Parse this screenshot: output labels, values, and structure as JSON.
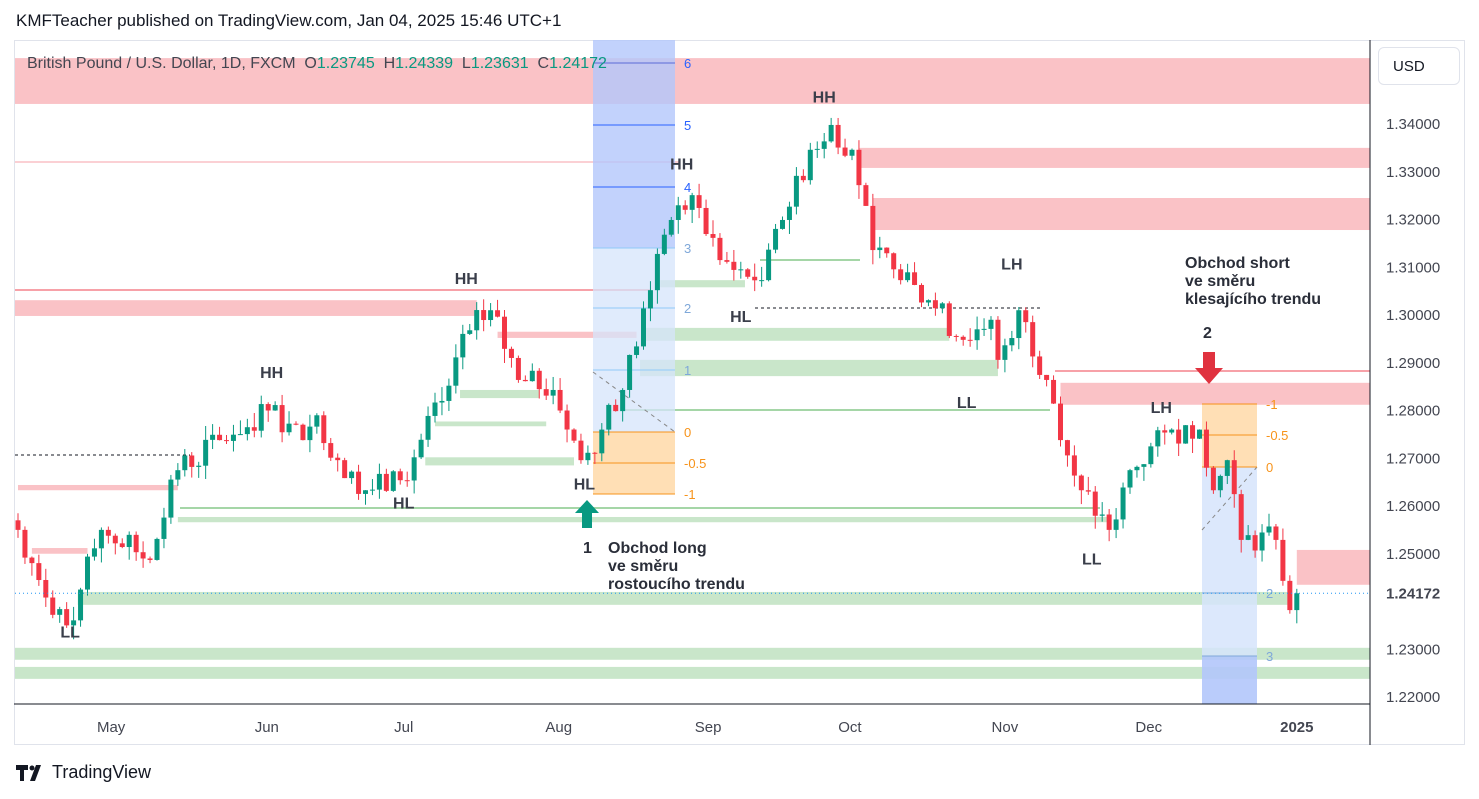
{
  "header": {
    "text": "KMFTeacher published on TradingView.com, Jan 04, 2025 15:46 UTC+1"
  },
  "legend": {
    "symbol": "British Pound / U.S. Dollar, 1D, FXCM",
    "o_label": "O",
    "o": "1.23745",
    "h_label": "H",
    "h": "1.24339",
    "l_label": "L",
    "l": "1.23631",
    "c_label": "C",
    "c": "1.24172"
  },
  "currency": "USD",
  "logo": {
    "text": "TradingView"
  },
  "chart_data": {
    "type": "candlestick",
    "title": "British Pound / U.S. Dollar, 1D, FXCM",
    "ylim": [
      1.217,
      1.357
    ],
    "y_ticks": [
      "1.34000",
      "1.33000",
      "1.32000",
      "1.31000",
      "1.30000",
      "1.29000",
      "1.28000",
      "1.27000",
      "1.26000",
      "1.25000",
      "1.24172",
      "1.23000",
      "1.22000"
    ],
    "x_ticks": [
      {
        "label": "May",
        "i": 13.4
      },
      {
        "label": "Jun",
        "i": 35.8
      },
      {
        "label": "Jul",
        "i": 55.5
      },
      {
        "label": "Aug",
        "i": 77.8
      },
      {
        "label": "Sep",
        "i": 99.3
      },
      {
        "label": "Oct",
        "i": 119.7
      },
      {
        "label": "Nov",
        "i": 142
      },
      {
        "label": "Dec",
        "i": 162.7
      },
      {
        "label": "2025",
        "i": 184
      }
    ],
    "last_price": 1.24172,
    "close_anchors": [
      [
        0,
        1.255
      ],
      [
        3,
        1.2445
      ],
      [
        7,
        1.235
      ],
      [
        9,
        1.2425
      ],
      [
        12,
        1.255
      ],
      [
        19,
        1.2487
      ],
      [
        23,
        1.2675
      ],
      [
        29,
        1.2738
      ],
      [
        36,
        1.28
      ],
      [
        41,
        1.2738
      ],
      [
        43,
        1.279
      ],
      [
        46,
        1.2696
      ],
      [
        50,
        1.2633
      ],
      [
        55,
        1.2654
      ],
      [
        61,
        1.282
      ],
      [
        65,
        1.2968
      ],
      [
        68,
        1.301
      ],
      [
        72,
        1.2864
      ],
      [
        77,
        1.2843
      ],
      [
        81,
        1.2696
      ],
      [
        84,
        1.276
      ],
      [
        87,
        1.2843
      ],
      [
        91,
        1.3052
      ],
      [
        94,
        1.3199
      ],
      [
        97,
        1.3251
      ],
      [
        101,
        1.3115
      ],
      [
        107,
        1.3073
      ],
      [
        110,
        1.3199
      ],
      [
        114,
        1.3346
      ],
      [
        117,
        1.3398
      ],
      [
        120,
        1.3346
      ],
      [
        123,
        1.3136
      ],
      [
        127,
        1.3073
      ],
      [
        131,
        1.3031
      ],
      [
        136,
        1.2948
      ],
      [
        140,
        1.299
      ],
      [
        141,
        1.2906
      ],
      [
        144,
        1.301
      ],
      [
        148,
        1.2864
      ],
      [
        150,
        1.2738
      ],
      [
        153,
        1.2633
      ],
      [
        157,
        1.255
      ],
      [
        160,
        1.2675
      ],
      [
        166,
        1.276
      ],
      [
        170,
        1.276
      ],
      [
        172,
        1.2633
      ],
      [
        174,
        1.2696
      ],
      [
        176,
        1.2529
      ],
      [
        181,
        1.2529
      ],
      [
        183,
        1.2382
      ],
      [
        184,
        1.24172
      ]
    ],
    "supply_zones": [
      [
        1.3538,
        1.3442,
        -0.5,
        195
      ],
      [
        1.335,
        1.3308,
        121,
        195
      ],
      [
        1.3245,
        1.3178,
        123,
        195
      ],
      [
        1.3031,
        1.2998,
        -0.5,
        66
      ],
      [
        1.2965,
        1.2952,
        69,
        89
      ],
      [
        1.2644,
        1.2633,
        0,
        23
      ],
      [
        1.2512,
        1.25,
        2,
        10
      ],
      [
        1.2858,
        1.2812,
        150,
        195
      ],
      [
        1.2508,
        1.2435,
        184,
        195
      ]
    ],
    "demand_zones": [
      [
        1.242,
        1.2393,
        8.6,
        183
      ],
      [
        1.2303,
        1.2278,
        -0.5,
        195
      ],
      [
        1.2263,
        1.2238,
        -0.5,
        195
      ],
      [
        1.2577,
        1.2566,
        23,
        157
      ],
      [
        1.2906,
        1.2872,
        89.5,
        141
      ],
      [
        1.2973,
        1.2946,
        90,
        134
      ],
      [
        1.3073,
        1.3058,
        92.4,
        104.6
      ],
      [
        1.2843,
        1.2826,
        63.6,
        75
      ],
      [
        1.2777,
        1.2767,
        60,
        76
      ],
      [
        1.2702,
        1.2685,
        58.6,
        80
      ]
    ],
    "labels": [
      {
        "text": "LL",
        "i": 7.5,
        "p": 1.2325
      },
      {
        "text": "HH",
        "i": 36.5,
        "p": 1.2868
      },
      {
        "text": "HL",
        "i": 55.5,
        "p": 1.2595
      },
      {
        "text": "HH",
        "i": 64.5,
        "p": 1.3065
      },
      {
        "text": "HL",
        "i": 81.5,
        "p": 1.2635
      },
      {
        "text": "HH",
        "i": 95.5,
        "p": 1.3305
      },
      {
        "text": "HL",
        "i": 104,
        "p": 1.2985
      },
      {
        "text": "HH",
        "i": 116,
        "p": 1.3445
      },
      {
        "text": "LH",
        "i": 143,
        "p": 1.3095
      },
      {
        "text": "LL",
        "i": 136.5,
        "p": 1.2805
      },
      {
        "text": "LL",
        "i": 154.5,
        "p": 1.2477
      },
      {
        "text": "LH",
        "i": 164.5,
        "p": 1.2795
      }
    ],
    "trade_1": {
      "number": "1",
      "lines": [
        "Obchod long",
        "ve směru",
        "rostoucího trendu"
      ]
    },
    "trade_2": {
      "number": "2",
      "lines": [
        "Obchod short",
        "ve směru",
        "klesajícího trendu"
      ]
    },
    "fib_long": {
      "levels": [
        "6",
        "5",
        "4",
        "3",
        "2",
        "1",
        "0",
        "-0.5",
        "-1"
      ]
    },
    "fib_short": {
      "levels": [
        "-1",
        "-0.5",
        "0",
        "2",
        "3"
      ]
    }
  }
}
